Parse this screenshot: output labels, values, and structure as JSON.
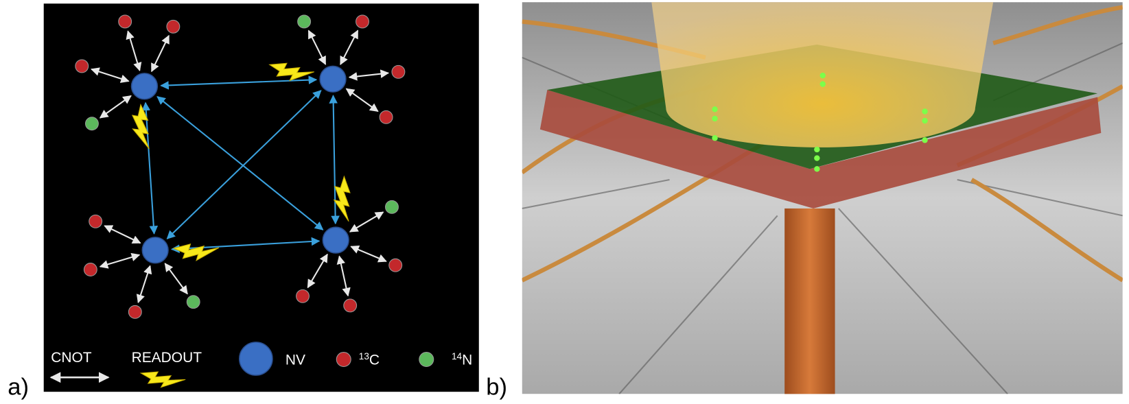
{
  "panel_a": {
    "label": "a)",
    "legend": {
      "cnot": "CNOT",
      "readout": "READOUT",
      "nv": "NV",
      "c13": {
        "sup": "13",
        "text": "C"
      },
      "n14": {
        "sup": "14",
        "text": "N"
      }
    }
  },
  "panel_b": {
    "label": "b)"
  }
}
